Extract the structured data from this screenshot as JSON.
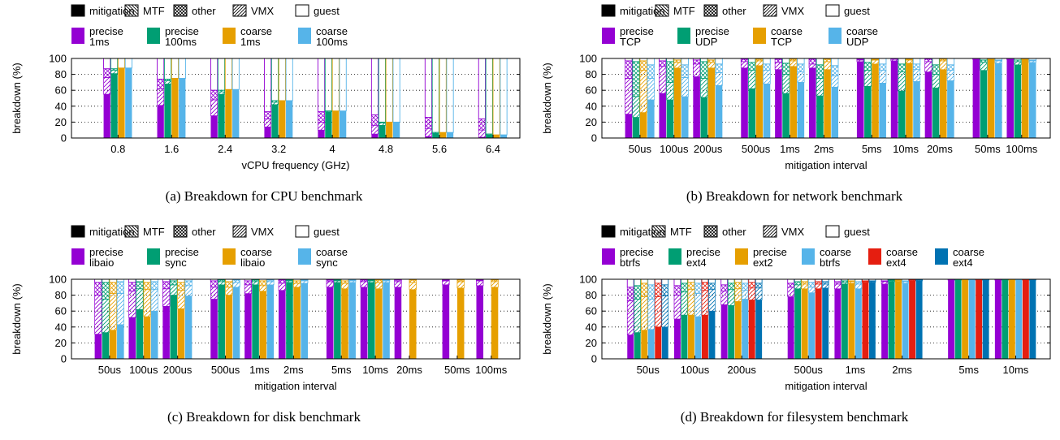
{
  "legend": {
    "components": [
      "mitigation",
      "MTF",
      "other",
      "VMX",
      "guest"
    ]
  },
  "colors": {
    "mitigation": "#000000",
    "purple": "#9400d3",
    "green": "#009e73",
    "orange": "#e69f00",
    "blue": "#56b4e9",
    "red": "#e51e10",
    "darkblue": "#0072b2"
  },
  "chart_data": [
    {
      "id": "a",
      "type": "bar",
      "subtype": "stacked-grouped",
      "caption": "(a) Breakdown for CPU benchmark",
      "xlabel": "vCPU frequency (GHz)",
      "ylabel": "breakdown (%)",
      "ylim": [
        0,
        100
      ],
      "yticks": [
        0,
        20,
        40,
        60,
        80,
        100
      ],
      "categories": [
        "0.8",
        "1.6",
        "2.4",
        "3.2",
        "4",
        "4.8",
        "5.6",
        "6.4"
      ],
      "series": [
        {
          "name": "precise\n1ms",
          "color": "purple",
          "guest": [
            55,
            41,
            28,
            14,
            10,
            5,
            2,
            1
          ],
          "VMX": [
            76,
            62,
            48,
            24,
            20,
            16,
            12,
            10
          ],
          "other": [
            87,
            74,
            60,
            33,
            33,
            29,
            26,
            24
          ]
        },
        {
          "name": "precise\n100ms",
          "color": "green",
          "guest": [
            81,
            68,
            55,
            42,
            33,
            16,
            6,
            4
          ],
          "VMX": [
            85,
            72,
            58,
            45,
            34,
            19,
            7,
            5
          ],
          "other": [
            87,
            74,
            60,
            47,
            34,
            20,
            7,
            5
          ]
        },
        {
          "name": "coarse\n1ms",
          "color": "orange",
          "guest": [
            88,
            75,
            61,
            47,
            34,
            20,
            7,
            4
          ],
          "VMX": [
            88,
            75,
            61,
            47,
            34,
            20,
            7,
            4
          ],
          "other": [
            88,
            75,
            61,
            47,
            34,
            20,
            7,
            4
          ]
        },
        {
          "name": "coarse\n100ms",
          "color": "blue",
          "guest": [
            88,
            75,
            61,
            47,
            34,
            20,
            7,
            4
          ],
          "VMX": [
            88,
            75,
            61,
            47,
            34,
            20,
            7,
            4
          ],
          "other": [
            88,
            75,
            61,
            47,
            34,
            20,
            7,
            4
          ]
        }
      ]
    },
    {
      "id": "b",
      "type": "bar",
      "subtype": "stacked-grouped",
      "caption": "(b) Breakdown for network benchmark",
      "xlabel": "mitigation interval",
      "ylabel": "breakdown (%)",
      "ylim": [
        0,
        100
      ],
      "yticks": [
        0,
        20,
        40,
        60,
        80,
        100
      ],
      "categories": [
        "50us",
        "100us",
        "200us",
        "500us",
        "1ms",
        "2ms",
        "5ms",
        "10ms",
        "20ms",
        "50ms",
        "100ms"
      ],
      "series": [
        {
          "name": "precise\nTCP",
          "color": "purple",
          "guest": [
            30,
            56,
            77,
            88,
            86,
            88,
            96,
            97,
            83,
            99,
            99
          ],
          "VMX": [
            75,
            90,
            93,
            96,
            95,
            93,
            98,
            99,
            96,
            99,
            99
          ],
          "other": [
            97,
            97,
            98,
            99,
            99,
            99,
            99,
            99,
            99,
            99,
            99
          ]
        },
        {
          "name": "precise\nUDP",
          "color": "green",
          "guest": [
            26,
            48,
            51,
            62,
            56,
            53,
            65,
            59,
            63,
            85,
            92
          ],
          "VMX": [
            52,
            70,
            75,
            85,
            80,
            75,
            85,
            83,
            80,
            95,
            96
          ],
          "other": [
            96,
            96,
            96,
            95,
            94,
            92,
            95,
            93,
            92,
            98,
            98
          ]
        },
        {
          "name": "coarse\nTCP",
          "color": "orange",
          "guest": [
            32,
            88,
            88,
            91,
            90,
            86,
            93,
            94,
            86,
            99,
            99
          ],
          "VMX": [
            85,
            95,
            95,
            97,
            97,
            96,
            98,
            98,
            97,
            99,
            99
          ],
          "other": [
            97,
            98,
            98,
            99,
            99,
            99,
            99,
            99,
            99,
            99,
            99
          ]
        },
        {
          "name": "coarse\nUDP",
          "color": "blue",
          "guest": [
            48,
            52,
            66,
            68,
            70,
            64,
            69,
            71,
            72,
            94,
            95
          ],
          "VMX": [
            75,
            76,
            82,
            85,
            83,
            78,
            85,
            86,
            85,
            97,
            97
          ],
          "other": [
            92,
            92,
            93,
            93,
            93,
            91,
            93,
            93,
            92,
            98,
            98
          ]
        }
      ]
    },
    {
      "id": "c",
      "type": "bar",
      "subtype": "stacked-grouped",
      "caption": "(c) Breakdown for disk benchmark",
      "xlabel": "mitigation interval",
      "ylabel": "breakdown (%)",
      "ylim": [
        0,
        100
      ],
      "yticks": [
        0,
        20,
        40,
        60,
        80,
        100
      ],
      "categories": [
        "50us",
        "100us",
        "200us",
        "500us",
        "1ms",
        "2ms",
        "5ms",
        "10ms",
        "20ms",
        "50ms",
        "100ms"
      ],
      "series": [
        {
          "name": "precise\nlibaio",
          "color": "purple",
          "guest": [
            31,
            52,
            66,
            75,
            82,
            86,
            90,
            90,
            90,
            93,
            92
          ],
          "VMX": [
            80,
            85,
            88,
            90,
            93,
            95,
            97,
            97,
            97,
            98,
            98
          ],
          "other": [
            96,
            96,
            97,
            98,
            98,
            99,
            99,
            99,
            99,
            99,
            99
          ]
        },
        {
          "name": "precise\nsync",
          "color": "green",
          "guest": [
            33,
            62,
            80,
            93,
            93,
            96,
            96,
            96,
            null,
            null,
            null
          ],
          "VMX": [
            75,
            88,
            93,
            97,
            97,
            98,
            98,
            98,
            null,
            null,
            null
          ],
          "other": [
            96,
            97,
            98,
            99,
            99,
            99,
            99,
            99,
            null,
            null,
            null
          ]
        },
        {
          "name": "coarse\nlibaio",
          "color": "orange",
          "guest": [
            36,
            53,
            63,
            80,
            85,
            90,
            88,
            88,
            87,
            89,
            90
          ],
          "VMX": [
            82,
            87,
            86,
            90,
            92,
            95,
            95,
            96,
            96,
            97,
            97
          ],
          "other": [
            96,
            96,
            96,
            97,
            98,
            98,
            98,
            99,
            99,
            99,
            99
          ]
        },
        {
          "name": "coarse\nsync",
          "color": "blue",
          "guest": [
            43,
            60,
            79,
            90,
            93,
            95,
            96,
            96,
            null,
            null,
            null
          ],
          "VMX": [
            82,
            87,
            92,
            96,
            97,
            98,
            98,
            98,
            null,
            null,
            null
          ],
          "other": [
            97,
            97,
            98,
            99,
            99,
            99,
            99,
            99,
            null,
            null,
            null
          ]
        }
      ]
    },
    {
      "id": "d",
      "type": "bar",
      "subtype": "stacked-grouped",
      "caption": "(d) Breakdown for filesystem benchmark",
      "xlabel": "mitigation interval",
      "ylabel": "breakdown (%)",
      "ylim": [
        0,
        100
      ],
      "yticks": [
        0,
        20,
        40,
        60,
        80,
        100
      ],
      "categories": [
        "50us",
        "100us",
        "200us",
        "500us",
        "1ms",
        "2ms",
        "5ms",
        "10ms"
      ],
      "series": [
        {
          "name": "precise\nbtrfs",
          "color": "purple",
          "guest": [
            30,
            50,
            68,
            78,
            88,
            94,
            99,
            99
          ],
          "VMX": [
            73,
            80,
            85,
            90,
            94,
            97,
            99,
            99
          ],
          "other": [
            90,
            92,
            93,
            95,
            97,
            98,
            99,
            99
          ]
        },
        {
          "name": "precise\next4",
          "color": "green",
          "guest": [
            33,
            55,
            67,
            88,
            94,
            97,
            99,
            99
          ],
          "VMX": [
            75,
            84,
            87,
            93,
            96,
            98,
            99,
            99
          ],
          "other": [
            92,
            95,
            95,
            97,
            98,
            99,
            99,
            99
          ]
        },
        {
          "name": "precise\next2",
          "color": "orange",
          "guest": [
            36,
            55,
            72,
            88,
            95,
            97,
            99,
            99
          ],
          "VMX": [
            78,
            87,
            88,
            94,
            97,
            98,
            99,
            99
          ],
          "other": [
            95,
            96,
            96,
            97,
            98,
            99,
            99,
            99
          ]
        },
        {
          "name": "coarse\nbtrfs",
          "color": "blue",
          "guest": [
            37,
            53,
            75,
            83,
            88,
            95,
            99,
            99
          ],
          "VMX": [
            75,
            82,
            86,
            90,
            94,
            97,
            99,
            99
          ],
          "other": [
            93,
            95,
            95,
            96,
            97,
            98,
            99,
            99
          ]
        },
        {
          "name": "coarse\next4",
          "color": "red",
          "guest": [
            40,
            55,
            74,
            88,
            96,
            98,
            99,
            99
          ],
          "VMX": [
            78,
            86,
            89,
            94,
            97,
            98,
            99,
            99
          ],
          "other": [
            95,
            96,
            96,
            97,
            98,
            99,
            99,
            99
          ]
        },
        {
          "name": "coarse\next4",
          "color": "darkblue",
          "guest": [
            40,
            60,
            74,
            89,
            96,
            98,
            99,
            99
          ],
          "VMX": [
            79,
            87,
            89,
            94,
            97,
            98,
            99,
            99
          ],
          "other": [
            93,
            95,
            95,
            97,
            98,
            99,
            99,
            99
          ]
        }
      ]
    }
  ]
}
